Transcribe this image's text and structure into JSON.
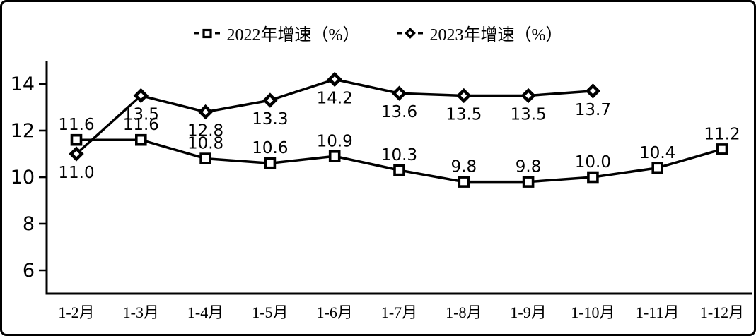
{
  "chart_data": {
    "type": "line",
    "title": "",
    "xlabel": "",
    "ylabel": "",
    "categories": [
      "1-2月",
      "1-3月",
      "1-4月",
      "1-5月",
      "1-6月",
      "1-7月",
      "1-8月",
      "1-9月",
      "1-10月",
      "1-11月",
      "1-12月"
    ],
    "series": [
      {
        "name": "2022年增速（%）",
        "marker": "square",
        "label_position": "above",
        "values": [
          11.6,
          11.6,
          10.8,
          10.6,
          10.9,
          10.3,
          9.8,
          9.8,
          10.0,
          10.4,
          11.2
        ]
      },
      {
        "name": "2023年增速（%）",
        "marker": "diamond",
        "label_position": "below",
        "values": [
          11.0,
          13.5,
          12.8,
          13.3,
          14.2,
          13.6,
          13.5,
          13.5,
          13.7
        ]
      }
    ],
    "yticks": [
      6,
      8,
      10,
      12,
      14
    ],
    "ylim": [
      5,
      15
    ],
    "grid": false,
    "legend_position": "top",
    "line_color": "#000000",
    "marker_fill": "#ffffff",
    "background": "#ffffff"
  }
}
